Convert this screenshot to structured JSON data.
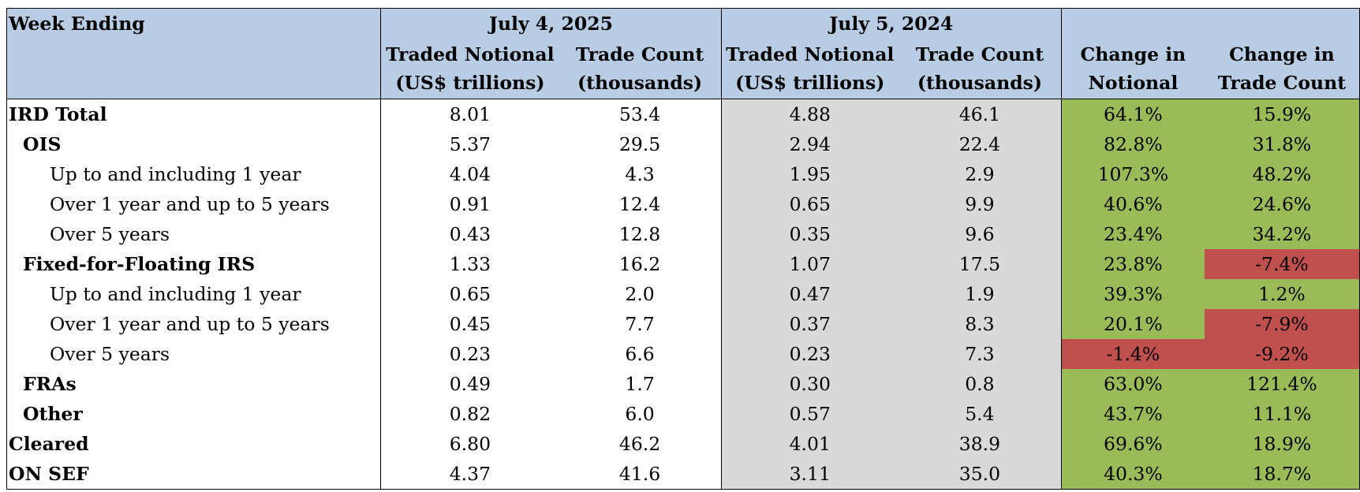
{
  "header": {
    "week_ending_label": "Week Ending",
    "current_period": "July 4, 2025",
    "prior_period": "July 5, 2024",
    "columns": {
      "traded_notional": [
        "Traded Notional",
        "(US$ trillions)"
      ],
      "trade_count": [
        "Trade Count",
        "(thousands)"
      ],
      "change_notional": [
        "Change in",
        "Notional"
      ],
      "change_trade_count": [
        "Change in",
        "Trade Count"
      ]
    }
  },
  "colors": {
    "header_bg": "#b8cce4",
    "prior_bg": "#d9d9d9",
    "positive_change": "#9bbb59",
    "negative_change": "#c0504d"
  },
  "rows": [
    {
      "label": "IRD Total",
      "level": 0,
      "cur_notional": "8.01",
      "cur_count": "53.4",
      "prev_notional": "4.88",
      "prev_count": "46.1",
      "chg_notional": "64.1%",
      "chg_count": "15.9%"
    },
    {
      "label": "OIS",
      "level": 1,
      "cur_notional": "5.37",
      "cur_count": "29.5",
      "prev_notional": "2.94",
      "prev_count": "22.4",
      "chg_notional": "82.8%",
      "chg_count": "31.8%"
    },
    {
      "label": "Up to and including 1 year",
      "level": 2,
      "cur_notional": "4.04",
      "cur_count": "4.3",
      "prev_notional": "1.95",
      "prev_count": "2.9",
      "chg_notional": "107.3%",
      "chg_count": "48.2%"
    },
    {
      "label": "Over 1 year and up to 5 years",
      "level": 2,
      "cur_notional": "0.91",
      "cur_count": "12.4",
      "prev_notional": "0.65",
      "prev_count": "9.9",
      "chg_notional": "40.6%",
      "chg_count": "24.6%"
    },
    {
      "label": "Over 5 years",
      "level": 2,
      "cur_notional": "0.43",
      "cur_count": "12.8",
      "prev_notional": "0.35",
      "prev_count": "9.6",
      "chg_notional": "23.4%",
      "chg_count": "34.2%"
    },
    {
      "label": "Fixed-for-Floating IRS",
      "level": 1,
      "cur_notional": "1.33",
      "cur_count": "16.2",
      "prev_notional": "1.07",
      "prev_count": "17.5",
      "chg_notional": "23.8%",
      "chg_count": "-7.4%"
    },
    {
      "label": "Up to and including 1 year",
      "level": 2,
      "cur_notional": "0.65",
      "cur_count": "2.0",
      "prev_notional": "0.47",
      "prev_count": "1.9",
      "chg_notional": "39.3%",
      "chg_count": "1.2%"
    },
    {
      "label": "Over 1 year and up to 5 years",
      "level": 2,
      "cur_notional": "0.45",
      "cur_count": "7.7",
      "prev_notional": "0.37",
      "prev_count": "8.3",
      "chg_notional": "20.1%",
      "chg_count": "-7.9%"
    },
    {
      "label": "Over 5 years",
      "level": 2,
      "cur_notional": "0.23",
      "cur_count": "6.6",
      "prev_notional": "0.23",
      "prev_count": "7.3",
      "chg_notional": "-1.4%",
      "chg_count": "-9.2%"
    },
    {
      "label": "FRAs",
      "level": 1,
      "cur_notional": "0.49",
      "cur_count": "1.7",
      "prev_notional": "0.30",
      "prev_count": "0.8",
      "chg_notional": "63.0%",
      "chg_count": "121.4%"
    },
    {
      "label": "Other",
      "level": 1,
      "cur_notional": "0.82",
      "cur_count": "6.0",
      "prev_notional": "0.57",
      "prev_count": "5.4",
      "chg_notional": "43.7%",
      "chg_count": "11.1%"
    },
    {
      "label": "Cleared",
      "level": 0,
      "cur_notional": "6.80",
      "cur_count": "46.2",
      "prev_notional": "4.01",
      "prev_count": "38.9",
      "chg_notional": "69.6%",
      "chg_count": "18.9%"
    },
    {
      "label": "ON SEF",
      "level": 0,
      "cur_notional": "4.37",
      "cur_count": "41.6",
      "prev_notional": "3.11",
      "prev_count": "35.0",
      "chg_notional": "40.3%",
      "chg_count": "18.7%"
    }
  ]
}
